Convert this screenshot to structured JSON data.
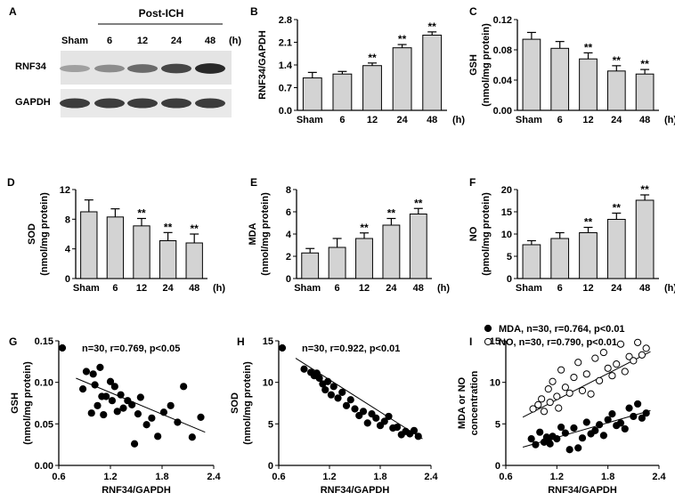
{
  "blot": {
    "panel_label": "A",
    "group_label": "Post-ICH",
    "columns": [
      "Sham",
      "6",
      "12",
      "24",
      "48"
    ],
    "unit": "(h)",
    "rows": [
      {
        "label": "RNF34",
        "intensity": [
          0.35,
          0.45,
          0.62,
          0.8,
          0.95
        ]
      },
      {
        "label": "GAPDH",
        "intensity": [
          0.85,
          0.85,
          0.85,
          0.85,
          0.85
        ]
      }
    ]
  },
  "chart_data": [
    {
      "id": "B",
      "type": "bar",
      "panel_label": "B",
      "ylabel": "RNF34/GAPDH",
      "ylabel2": "",
      "categories": [
        "Sham",
        "6",
        "12",
        "24",
        "48"
      ],
      "xunit": "(h)",
      "values": [
        1.0,
        1.12,
        1.38,
        1.93,
        2.32
      ],
      "errors": [
        0.17,
        0.08,
        0.08,
        0.1,
        0.1
      ],
      "sig": [
        "",
        "",
        "**",
        "**",
        "**"
      ],
      "yticks": [
        "0.0",
        "0.7",
        "1.4",
        "2.1",
        "2.8"
      ],
      "ylim": [
        0,
        2.8
      ]
    },
    {
      "id": "C",
      "type": "bar",
      "panel_label": "C",
      "ylabel": "GSH",
      "ylabel2": "(nmol/mg protein)",
      "categories": [
        "Sham",
        "6",
        "12",
        "24",
        "48"
      ],
      "xunit": "(h)",
      "values": [
        0.094,
        0.082,
        0.068,
        0.052,
        0.048
      ],
      "errors": [
        0.009,
        0.009,
        0.008,
        0.007,
        0.006
      ],
      "sig": [
        "",
        "",
        "**",
        "**",
        "**"
      ],
      "yticks": [
        "0.00",
        "0.04",
        "0.08",
        "0.12"
      ],
      "ylim": [
        0,
        0.12
      ]
    },
    {
      "id": "D",
      "type": "bar",
      "panel_label": "D",
      "ylabel": "SOD",
      "ylabel2": "(nmol/mg protein)",
      "categories": [
        "Sham",
        "6",
        "12",
        "24",
        "48"
      ],
      "xunit": "(h)",
      "values": [
        9.0,
        8.3,
        7.1,
        5.1,
        4.8
      ],
      "errors": [
        1.6,
        1.1,
        1.0,
        1.1,
        1.2
      ],
      "sig": [
        "",
        "",
        "**",
        "**",
        "**"
      ],
      "yticks": [
        "0",
        "4",
        "8",
        "12"
      ],
      "ylim": [
        0,
        12
      ]
    },
    {
      "id": "E",
      "type": "bar",
      "panel_label": "E",
      "ylabel": "MDA",
      "ylabel2": "(nmol/mg protein)",
      "categories": [
        "Sham",
        "6",
        "12",
        "24",
        "48"
      ],
      "xunit": "(h)",
      "values": [
        2.3,
        2.8,
        3.6,
        4.8,
        5.8
      ],
      "errors": [
        0.4,
        0.8,
        0.5,
        0.6,
        0.5
      ],
      "sig": [
        "",
        "",
        "**",
        "**",
        "**"
      ],
      "yticks": [
        "0",
        "2",
        "4",
        "6",
        "8"
      ],
      "ylim": [
        0,
        8
      ]
    },
    {
      "id": "F",
      "type": "bar",
      "panel_label": "F",
      "ylabel": "NO",
      "ylabel2": "(pmol/mg protein)",
      "categories": [
        "Sham",
        "6",
        "12",
        "24",
        "48"
      ],
      "xunit": "(h)",
      "values": [
        7.6,
        9.0,
        10.3,
        13.3,
        17.6
      ],
      "errors": [
        0.9,
        1.3,
        1.2,
        1.4,
        1.2
      ],
      "sig": [
        "",
        "",
        "**",
        "**",
        "**"
      ],
      "yticks": [
        "0",
        "5",
        "10",
        "15",
        "20"
      ],
      "ylim": [
        0,
        20
      ]
    },
    {
      "id": "G",
      "type": "scatter",
      "panel_label": "G",
      "ylabel": "GSH",
      "ylabel2": "(nmol/mg protein)",
      "xlabel": "RNF34/GAPDH",
      "xticks": [
        "0.6",
        "1.2",
        "1.8",
        "2.4"
      ],
      "xlim": [
        0.6,
        2.4
      ],
      "yticks": [
        "0.00",
        "0.05",
        "0.10",
        "0.15"
      ],
      "ylim": [
        0,
        0.15
      ],
      "series": [
        {
          "name": "GSH",
          "marker": "filled",
          "legend": "n=30, r=0.769, p<0.05",
          "x": [
            0.88,
            0.92,
            0.98,
            1.0,
            1.02,
            1.05,
            1.08,
            1.1,
            1.12,
            1.15,
            1.2,
            1.22,
            1.25,
            1.28,
            1.32,
            1.35,
            1.4,
            1.45,
            1.48,
            1.52,
            1.55,
            1.62,
            1.68,
            1.75,
            1.82,
            1.9,
            1.98,
            2.05,
            2.15,
            2.25
          ],
          "y": [
            0.092,
            0.113,
            0.063,
            0.11,
            0.097,
            0.072,
            0.118,
            0.083,
            0.061,
            0.083,
            0.101,
            0.078,
            0.095,
            0.065,
            0.085,
            0.069,
            0.078,
            0.073,
            0.026,
            0.062,
            0.082,
            0.049,
            0.057,
            0.035,
            0.064,
            0.072,
            0.052,
            0.095,
            0.034,
            0.058
          ],
          "fit": [
            0.105,
            0.04
          ]
        }
      ]
    },
    {
      "id": "H",
      "type": "scatter",
      "panel_label": "H",
      "ylabel": "SOD",
      "ylabel2": "(nmol/mg protein)",
      "xlabel": "RNF34/GAPDH",
      "xticks": [
        "0.6",
        "1.2",
        "1.8",
        "2.4"
      ],
      "xlim": [
        0.6,
        2.4
      ],
      "yticks": [
        "0",
        "5",
        "10",
        "15"
      ],
      "ylim": [
        0,
        15
      ],
      "series": [
        {
          "name": "SOD",
          "marker": "filled",
          "legend": "n=30, r=0.922, p<0.01",
          "x": [
            0.9,
            0.98,
            1.02,
            1.05,
            1.08,
            1.12,
            1.15,
            1.18,
            1.22,
            1.25,
            1.3,
            1.35,
            1.4,
            1.45,
            1.5,
            1.55,
            1.6,
            1.65,
            1.7,
            1.75,
            1.8,
            1.85,
            1.9,
            1.95,
            2.0,
            2.05,
            2.1,
            2.15,
            2.2,
            2.25
          ],
          "y": [
            11.6,
            11.2,
            10.8,
            11.1,
            10.5,
            9.8,
            9.1,
            10.1,
            8.5,
            9.5,
            8.1,
            8.8,
            7.2,
            7.9,
            6.8,
            6.0,
            6.5,
            5.1,
            6.2,
            5.7,
            4.8,
            5.3,
            5.9,
            4.5,
            4.6,
            3.7,
            4.1,
            3.8,
            4.2,
            3.5
          ],
          "fit": [
            12.9,
            3.2
          ]
        }
      ]
    },
    {
      "id": "I",
      "type": "scatter",
      "panel_label": "I",
      "ylabel": "MDA or NO",
      "ylabel2": "concentration",
      "xlabel": "RNF34/GAPDH",
      "xticks": [
        "0.6",
        "1.2",
        "1.8",
        "2.4"
      ],
      "xlim": [
        0.6,
        2.4
      ],
      "yticks": [
        "0",
        "5",
        "10",
        "15"
      ],
      "ylim": [
        0,
        15
      ],
      "series": [
        {
          "name": "MDA",
          "marker": "filled",
          "legend": "MDA, n=30, r=0.764, p<0.01",
          "x": [
            0.9,
            0.95,
            1.0,
            1.05,
            1.08,
            1.1,
            1.12,
            1.15,
            1.2,
            1.25,
            1.3,
            1.35,
            1.4,
            1.45,
            1.5,
            1.55,
            1.6,
            1.65,
            1.7,
            1.75,
            1.8,
            1.85,
            1.9,
            1.95,
            2.0,
            2.05,
            2.1,
            2.15,
            2.2,
            2.25
          ],
          "y": [
            3.2,
            2.5,
            4.0,
            2.8,
            3.4,
            3.1,
            2.6,
            3.5,
            3.2,
            4.6,
            3.9,
            1.9,
            4.5,
            2.1,
            3.3,
            5.2,
            3.8,
            4.2,
            4.9,
            3.6,
            5.5,
            6.2,
            4.8,
            5.1,
            4.4,
            6.9,
            5.9,
            7.4,
            5.7,
            6.3
          ],
          "fit": [
            2.2,
            6.6
          ]
        },
        {
          "name": "NO",
          "marker": "open",
          "legend": "NO, n=30, r=0.790, p<0.01",
          "x": [
            0.92,
            0.98,
            1.02,
            1.05,
            1.1,
            1.12,
            1.15,
            1.2,
            1.22,
            1.25,
            1.3,
            1.35,
            1.4,
            1.45,
            1.5,
            1.55,
            1.6,
            1.65,
            1.7,
            1.75,
            1.8,
            1.85,
            1.9,
            1.95,
            2.0,
            2.05,
            2.1,
            2.15,
            2.2,
            2.25
          ],
          "y": [
            6.8,
            7.3,
            8.0,
            6.5,
            9.2,
            7.6,
            10.1,
            8.3,
            6.9,
            11.5,
            9.4,
            8.7,
            10.6,
            12.4,
            9.0,
            11.0,
            8.6,
            12.9,
            10.2,
            13.6,
            11.7,
            10.8,
            12.2,
            14.6,
            11.3,
            13.1,
            12.6,
            14.8,
            13.3,
            14.1
          ],
          "fit": [
            5.8,
            13.7
          ]
        }
      ]
    }
  ]
}
